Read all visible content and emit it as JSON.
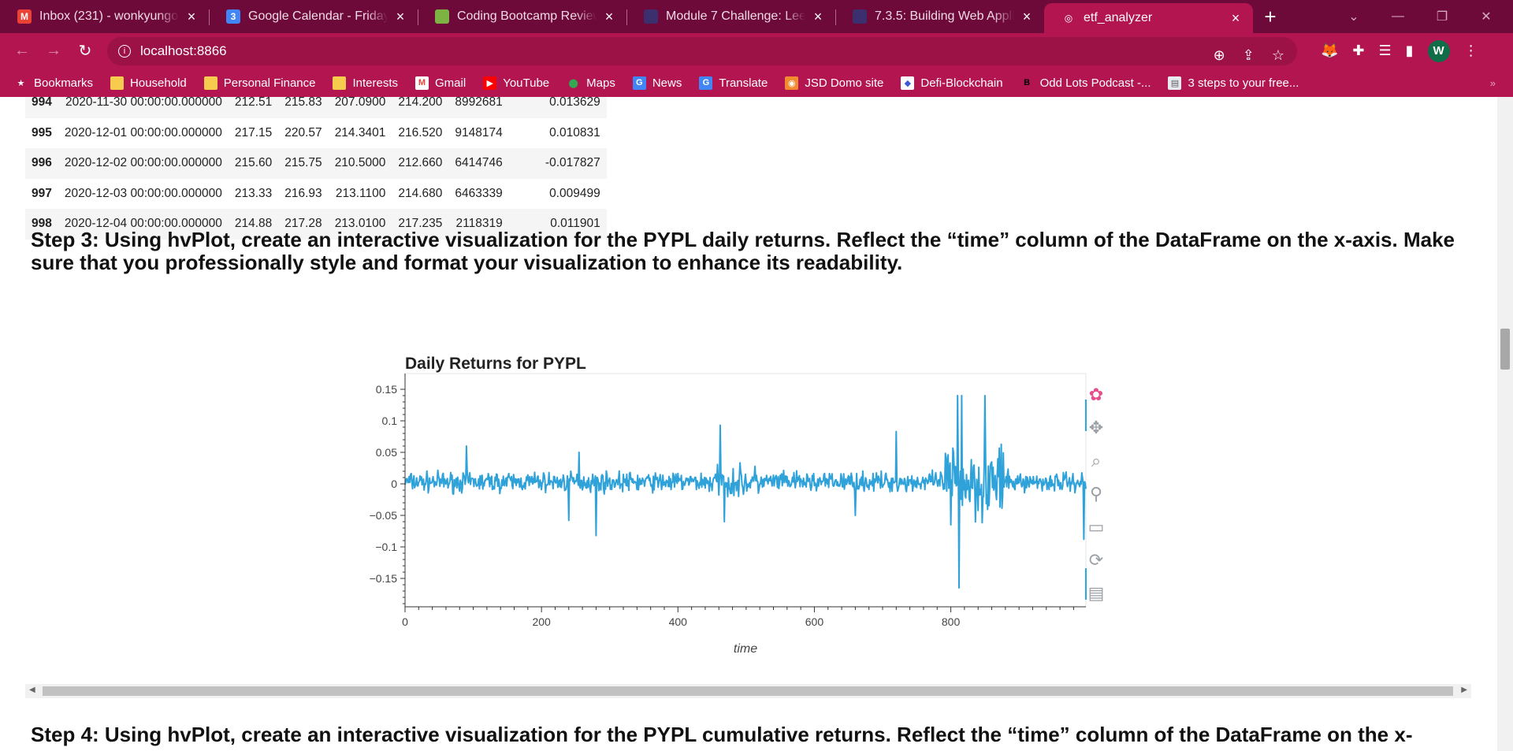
{
  "tabs": [
    {
      "title": "Inbox (231) - wonkyungogl",
      "icon": "gmail-icon",
      "color": "#ea4335",
      "glyph": "M"
    },
    {
      "title": "Google Calendar - Friday, J",
      "icon": "calendar-icon",
      "color": "#4285f4",
      "glyph": "3"
    },
    {
      "title": "Coding Bootcamp Reviews",
      "icon": "bootcamp-icon",
      "color": "#7cb342",
      "glyph": ""
    },
    {
      "title": "Module 7 Challenge: Lee, W",
      "icon": "canvas-icon",
      "color": "#3b2f6e",
      "glyph": ""
    },
    {
      "title": "7.3.5: Building Web Applica",
      "icon": "canvas-icon",
      "color": "#3b2f6e",
      "glyph": ""
    },
    {
      "title": "etf_analyzer",
      "icon": "globe-icon",
      "color": "#b2154f",
      "glyph": "◎"
    }
  ],
  "address": "localhost:8866",
  "avatar": "W",
  "bookmarks": [
    {
      "label": "Bookmarks",
      "icon": "star-icon"
    },
    {
      "label": "Household",
      "icon": "folder-icon"
    },
    {
      "label": "Personal Finance",
      "icon": "folder-icon"
    },
    {
      "label": "Interests",
      "icon": "folder-icon"
    },
    {
      "label": "Gmail",
      "icon": "gmail-icon"
    },
    {
      "label": "YouTube",
      "icon": "youtube-icon"
    },
    {
      "label": "Maps",
      "icon": "maps-icon"
    },
    {
      "label": "News",
      "icon": "news-icon"
    },
    {
      "label": "Translate",
      "icon": "translate-icon"
    },
    {
      "label": "JSD Domo site",
      "icon": "domo-icon"
    },
    {
      "label": "Defi-Blockchain",
      "icon": "defi-icon"
    },
    {
      "label": "Odd Lots Podcast -...",
      "icon": "bloomberg-icon"
    },
    {
      "label": "3 steps to your free...",
      "icon": "page-icon"
    }
  ],
  "table_rows": [
    [
      "994",
      "2020-11-30 00:00:00.000000",
      "212.51",
      "215.83",
      "207.0900",
      "214.200",
      "8992681",
      "0.013629"
    ],
    [
      "995",
      "2020-12-01 00:00:00.000000",
      "217.15",
      "220.57",
      "214.3401",
      "216.520",
      "9148174",
      "0.010831"
    ],
    [
      "996",
      "2020-12-02 00:00:00.000000",
      "215.60",
      "215.75",
      "210.5000",
      "212.660",
      "6414746",
      "-0.017827"
    ],
    [
      "997",
      "2020-12-03 00:00:00.000000",
      "213.33",
      "216.93",
      "213.1100",
      "214.680",
      "6463339",
      "0.009499"
    ],
    [
      "998",
      "2020-12-04 00:00:00.000000",
      "214.88",
      "217.28",
      "213.0100",
      "217.235",
      "2118319",
      "0.011901"
    ]
  ],
  "step3": "Step 3: Using hvPlot, create an interactive visualization for the PYPL daily returns. Reflect the “time” column of the DataFrame on the x-axis. Make sure that you professionally style and format your visualization to enhance its readability.",
  "step4": "Step 4: Using hvPlot, create an interactive visualization for the PYPL cumulative returns. Reflect the “time” column of the DataFrame on the x-",
  "chart_data": {
    "type": "line",
    "title": "Daily Returns for PYPL",
    "xlabel": "time",
    "ylabel": "",
    "xlim": [
      0,
      998
    ],
    "ylim": [
      -0.195,
      0.175
    ],
    "x_ticks": [
      0,
      200,
      400,
      600,
      800
    ],
    "y_ticks": [
      0.15,
      0.1,
      0.05,
      0,
      -0.05,
      -0.1,
      -0.15
    ],
    "y_tick_labels": [
      "0.15",
      "0.1",
      "0.05",
      "0",
      "−0.05",
      "−0.1",
      "−0.15"
    ],
    "line_color": "#30a2da",
    "grid": false,
    "highlights": [
      {
        "x": 90,
        "y": 0.06
      },
      {
        "x": 240,
        "y": -0.058
      },
      {
        "x": 255,
        "y": 0.05
      },
      {
        "x": 280,
        "y": -0.082
      },
      {
        "x": 462,
        "y": 0.093
      },
      {
        "x": 468,
        "y": -0.06
      },
      {
        "x": 660,
        "y": -0.05
      },
      {
        "x": 720,
        "y": 0.083
      },
      {
        "x": 800,
        "y": -0.065
      },
      {
        "x": 810,
        "y": 0.14
      },
      {
        "x": 812,
        "y": -0.165
      },
      {
        "x": 816,
        "y": 0.14
      },
      {
        "x": 850,
        "y": 0.14
      },
      {
        "x": 995,
        "y": -0.088
      }
    ]
  },
  "chart_tools": [
    "bokeh-logo-icon",
    "pan-icon",
    "box-zoom-icon",
    "wheel-zoom-icon",
    "save-icon",
    "reset-icon",
    "hover-icon"
  ]
}
